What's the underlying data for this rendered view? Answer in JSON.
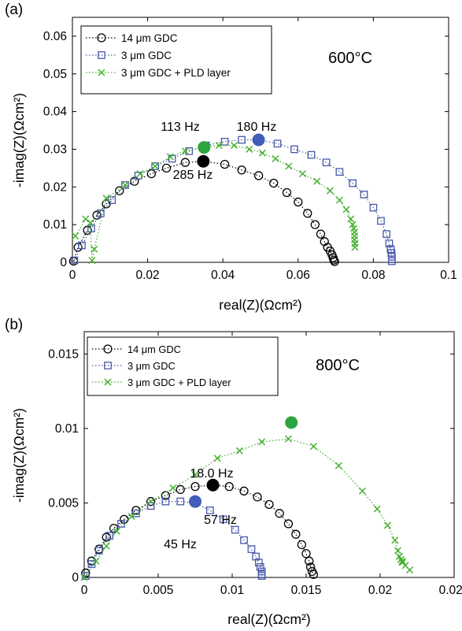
{
  "chart_data": [
    {
      "type": "scatter",
      "panel_label": "(a)",
      "annotation_temp": "600°C",
      "xlabel": "real(Z)(Ωcm²)",
      "ylabel": "-imag(Z)(Ωcm²)",
      "xlim": [
        0,
        0.1
      ],
      "ylim": [
        0,
        0.065
      ],
      "xticks": [
        0,
        0.02,
        0.04,
        0.06,
        0.08,
        0.1
      ],
      "xtick_labels": [
        "0",
        "0.02",
        "0.04",
        "0.06",
        "0.08",
        "0.1"
      ],
      "yticks": [
        0,
        0.01,
        0.02,
        0.03,
        0.04,
        0.05,
        0.06
      ],
      "ytick_labels": [
        "0",
        "0.01",
        "0.02",
        "0.03",
        "0.04",
        "0.05",
        "0.06"
      ],
      "legend_position": "top-left",
      "series": [
        {
          "name": "14 μm GDC",
          "color": "#000000",
          "marker": "circle",
          "x": [
            0.0003,
            0.0015,
            0.004,
            0.0065,
            0.009,
            0.0125,
            0.0165,
            0.021,
            0.025,
            0.03,
            0.035,
            0.0405,
            0.045,
            0.0495,
            0.0535,
            0.057,
            0.06,
            0.0625,
            0.0645,
            0.066,
            0.067,
            0.0678,
            0.0685,
            0.069,
            0.0693,
            0.0695,
            0.0697
          ],
          "y": [
            0.0003,
            0.004,
            0.0085,
            0.0125,
            0.0155,
            0.019,
            0.0215,
            0.0235,
            0.025,
            0.0265,
            0.0268,
            0.026,
            0.0245,
            0.023,
            0.021,
            0.0185,
            0.016,
            0.013,
            0.01,
            0.0075,
            0.0055,
            0.004,
            0.003,
            0.002,
            0.0012,
            0.0006,
            0.0002
          ]
        },
        {
          "name": "3 μm GDC",
          "color": "#4658a8",
          "marker": "square",
          "x": [
            0.0005,
            0.0025,
            0.005,
            0.0075,
            0.0105,
            0.014,
            0.0175,
            0.022,
            0.0265,
            0.031,
            0.0355,
            0.0405,
            0.045,
            0.0495,
            0.0545,
            0.059,
            0.0635,
            0.0675,
            0.071,
            0.0745,
            0.0775,
            0.08,
            0.082,
            0.0835,
            0.0842,
            0.0846,
            0.0848,
            0.0849,
            0.0849,
            0.0849
          ],
          "y": [
            0.0005,
            0.0045,
            0.009,
            0.013,
            0.0165,
            0.0205,
            0.023,
            0.0255,
            0.0275,
            0.0295,
            0.031,
            0.032,
            0.0325,
            0.0325,
            0.0315,
            0.03,
            0.0285,
            0.0265,
            0.024,
            0.021,
            0.018,
            0.0145,
            0.011,
            0.0075,
            0.005,
            0.0035,
            0.0025,
            0.0015,
            0.0008,
            0.0003
          ]
        },
        {
          "name": "3 μm GDC + PLD layer",
          "color": "#3fae2a",
          "marker": "x",
          "x": [
            0.0008,
            0.0035,
            0.0048,
            0.0052,
            0.0058,
            0.009,
            0.014,
            0.018,
            0.022,
            0.026,
            0.03,
            0.0345,
            0.039,
            0.043,
            0.047,
            0.0505,
            0.054,
            0.0575,
            0.0612,
            0.065,
            0.0685,
            0.071,
            0.0728,
            0.074,
            0.0745,
            0.0748,
            0.075,
            0.075,
            0.075,
            0.0751,
            0.0751
          ],
          "y": [
            0.007,
            0.0115,
            0.0105,
            0.0005,
            0.0035,
            0.017,
            0.0205,
            0.0235,
            0.0255,
            0.028,
            0.0295,
            0.0305,
            0.031,
            0.031,
            0.03,
            0.029,
            0.0275,
            0.0255,
            0.0235,
            0.0215,
            0.019,
            0.0165,
            0.014,
            0.0115,
            0.01,
            0.009,
            0.008,
            0.007,
            0.006,
            0.005,
            0.004
          ]
        }
      ],
      "highlights": [
        {
          "label": "113 Hz",
          "x": 0.035,
          "y": 0.0305,
          "color": "#2ca640"
        },
        {
          "label": "180 Hz",
          "x": 0.0495,
          "y": 0.0325,
          "color": "#3f5fb8"
        },
        {
          "label": "285 Hz",
          "x": 0.0348,
          "y": 0.0268,
          "color": "#000000"
        }
      ]
    },
    {
      "type": "scatter",
      "panel_label": "(b)",
      "annotation_temp": "800°C",
      "xlabel": "real(Z)(Ωcm²)",
      "ylabel": "-imag(Z)(Ωcm²)",
      "xlim": [
        0,
        0.025
      ],
      "ylim": [
        0,
        0.0165
      ],
      "xticks": [
        0,
        0.005,
        0.01,
        0.015,
        0.02,
        0.025
      ],
      "xtick_labels": [
        "0",
        "0.005",
        "0.01",
        "0.015",
        "0.02",
        "0.025"
      ],
      "yticks": [
        0,
        0.005,
        0.01,
        0.015
      ],
      "ytick_labels": [
        "0",
        "0.005",
        "0.01",
        "0.015"
      ],
      "legend_position": "top-left",
      "series": [
        {
          "name": "14 μm GDC",
          "color": "#000000",
          "marker": "circle",
          "x": [
            0.0001,
            0.0005,
            0.001,
            0.0015,
            0.002,
            0.0027,
            0.0035,
            0.0045,
            0.0055,
            0.0065,
            0.0075,
            0.0087,
            0.0098,
            0.0108,
            0.0117,
            0.0125,
            0.0132,
            0.0138,
            0.0143,
            0.0147,
            0.015,
            0.0152,
            0.0153,
            0.0154,
            0.0155
          ],
          "y": [
            0.0003,
            0.0011,
            0.0019,
            0.0027,
            0.0033,
            0.0039,
            0.0045,
            0.0051,
            0.0055,
            0.0059,
            0.0061,
            0.0062,
            0.0061,
            0.0058,
            0.0054,
            0.0049,
            0.0043,
            0.0036,
            0.0029,
            0.0022,
            0.0016,
            0.0011,
            0.0007,
            0.0004,
            0.0002
          ]
        },
        {
          "name": "3 μm GDC",
          "color": "#4658a8",
          "marker": "square",
          "x": [
            0.0001,
            0.0005,
            0.001,
            0.0017,
            0.0025,
            0.0035,
            0.0045,
            0.0055,
            0.0065,
            0.0075,
            0.0085,
            0.0094,
            0.0102,
            0.0108,
            0.0113,
            0.0116,
            0.0118,
            0.0119,
            0.012,
            0.012,
            0.012
          ],
          "y": [
            0.0001,
            0.0009,
            0.0018,
            0.0028,
            0.0036,
            0.0043,
            0.0048,
            0.0051,
            0.0051,
            0.005,
            0.0045,
            0.0039,
            0.0032,
            0.0025,
            0.0019,
            0.0014,
            0.001,
            0.0007,
            0.0004,
            0.0002,
            0.0001
          ]
        },
        {
          "name": "3 μm GDC + PLD layer",
          "color": "#3fae2a",
          "marker": "x",
          "x": [
            0.0,
            0.0008,
            0.0015,
            0.0022,
            0.0032,
            0.0045,
            0.006,
            0.0075,
            0.009,
            0.0105,
            0.012,
            0.0138,
            0.0155,
            0.0172,
            0.0188,
            0.0198,
            0.0205,
            0.021,
            0.0212,
            0.0213,
            0.0214,
            0.0215,
            0.0215,
            0.0217,
            0.022
          ],
          "y": [
            0.0,
            0.0011,
            0.0021,
            0.0031,
            0.0041,
            0.0051,
            0.006,
            0.0069,
            0.008,
            0.0085,
            0.0091,
            0.0093,
            0.0088,
            0.0075,
            0.0058,
            0.0046,
            0.0035,
            0.0025,
            0.0018,
            0.0014,
            0.0012,
            0.0011,
            0.001,
            0.0008,
            0.0005
          ]
        }
      ],
      "highlights": [
        {
          "label": "57 Hz",
          "x": 0.014,
          "y": 0.0104,
          "color": "#2ca640"
        },
        {
          "label": "18.0 Hz",
          "x": 0.0087,
          "y": 0.0062,
          "color": "#000000"
        },
        {
          "label": "45 Hz",
          "x": 0.0075,
          "y": 0.0051,
          "color": "#3f5fb8"
        }
      ]
    }
  ]
}
